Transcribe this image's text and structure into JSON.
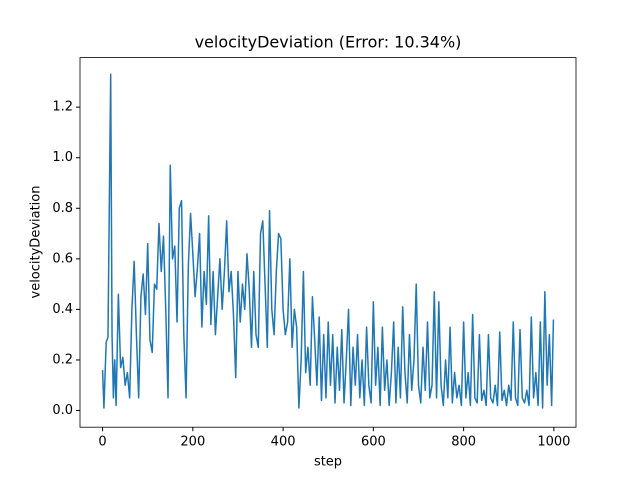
{
  "chart_data": {
    "type": "line",
    "title": "velocityDeviation (Error: 10.34%)",
    "x_label": "step",
    "y_label": "velocityDeviation",
    "color": "#1f77b4",
    "x": [
      0,
      3,
      8,
      12,
      16,
      18,
      21,
      24,
      27,
      30,
      35,
      40,
      45,
      50,
      55,
      60,
      65,
      70,
      75,
      80,
      85,
      90,
      95,
      100,
      105,
      110,
      115,
      120,
      125,
      130,
      135,
      140,
      145,
      150,
      155,
      160,
      165,
      170,
      175,
      180,
      185,
      190,
      195,
      200,
      205,
      210,
      215,
      220,
      225,
      230,
      235,
      240,
      245,
      250,
      255,
      260,
      265,
      270,
      275,
      280,
      285,
      290,
      295,
      300,
      305,
      310,
      315,
      320,
      325,
      330,
      335,
      340,
      345,
      350,
      355,
      360,
      365,
      370,
      375,
      380,
      385,
      390,
      395,
      400,
      405,
      410,
      415,
      420,
      425,
      430,
      435,
      440,
      445,
      450,
      455,
      460,
      465,
      470,
      475,
      480,
      485,
      490,
      495,
      500,
      505,
      510,
      515,
      520,
      525,
      530,
      535,
      540,
      545,
      550,
      555,
      560,
      565,
      570,
      575,
      580,
      585,
      590,
      595,
      600,
      605,
      610,
      615,
      620,
      625,
      630,
      635,
      640,
      645,
      650,
      655,
      660,
      665,
      670,
      675,
      680,
      685,
      690,
      695,
      700,
      705,
      710,
      715,
      720,
      725,
      730,
      735,
      740,
      745,
      750,
      755,
      760,
      765,
      770,
      775,
      780,
      785,
      790,
      795,
      800,
      805,
      810,
      815,
      820,
      825,
      830,
      835,
      840,
      845,
      850,
      855,
      860,
      865,
      870,
      875,
      880,
      885,
      890,
      895,
      900,
      905,
      910,
      915,
      920,
      925,
      930,
      935,
      940,
      945,
      950,
      955,
      960,
      965,
      970,
      975,
      980,
      985,
      990,
      995,
      999
    ],
    "values": [
      0.16,
      0.01,
      0.27,
      0.29,
      1.0,
      1.33,
      0.3,
      0.05,
      0.2,
      0.02,
      0.46,
      0.17,
      0.21,
      0.1,
      0.15,
      0.05,
      0.4,
      0.59,
      0.3,
      0.05,
      0.45,
      0.54,
      0.38,
      0.66,
      0.28,
      0.23,
      0.5,
      0.48,
      0.74,
      0.55,
      0.69,
      0.4,
      0.05,
      0.97,
      0.6,
      0.65,
      0.35,
      0.8,
      0.83,
      0.3,
      0.05,
      0.57,
      0.78,
      0.62,
      0.45,
      0.56,
      0.7,
      0.33,
      0.55,
      0.42,
      0.77,
      0.34,
      0.55,
      0.3,
      0.45,
      0.6,
      0.4,
      0.55,
      0.75,
      0.47,
      0.55,
      0.38,
      0.13,
      0.55,
      0.35,
      0.5,
      0.4,
      0.62,
      0.48,
      0.25,
      0.55,
      0.3,
      0.25,
      0.7,
      0.75,
      0.5,
      0.25,
      0.79,
      0.4,
      0.3,
      0.55,
      0.7,
      0.68,
      0.4,
      0.3,
      0.35,
      0.6,
      0.25,
      0.4,
      0.33,
      0.01,
      0.2,
      0.55,
      0.15,
      0.25,
      0.1,
      0.45,
      0.28,
      0.1,
      0.37,
      0.04,
      0.3,
      0.05,
      0.35,
      0.1,
      0.3,
      0.03,
      0.25,
      0.08,
      0.32,
      0.03,
      0.2,
      0.4,
      0.02,
      0.25,
      0.1,
      0.3,
      0.05,
      0.2,
      0.02,
      0.33,
      0.1,
      0.03,
      0.43,
      0.1,
      0.25,
      0.02,
      0.33,
      0.08,
      0.2,
      0.02,
      0.15,
      0.35,
      0.03,
      0.25,
      0.05,
      0.41,
      0.15,
      0.03,
      0.3,
      0.08,
      0.2,
      0.5,
      0.1,
      0.03,
      0.25,
      0.08,
      0.35,
      0.05,
      0.1,
      0.47,
      0.05,
      0.43,
      0.1,
      0.02,
      0.2,
      0.05,
      0.33,
      0.03,
      0.15,
      0.05,
      0.1,
      0.02,
      0.35,
      0.05,
      0.15,
      0.02,
      0.38,
      0.05,
      0.03,
      0.3,
      0.04,
      0.08,
      0.02,
      0.3,
      0.05,
      0.03,
      0.1,
      0.02,
      0.31,
      0.04,
      0.08,
      0.02,
      0.1,
      0.04,
      0.35,
      0.05,
      0.02,
      0.32,
      0.05,
      0.03,
      0.08,
      0.02,
      0.37,
      0.05,
      0.15,
      0.02,
      0.35,
      0.01,
      0.47,
      0.1,
      0.3,
      0.02,
      0.36
    ],
    "xlim": [
      -50,
      1049
    ],
    "ylim": [
      -0.066,
      1.396
    ],
    "xticks": [
      0,
      200,
      400,
      600,
      800,
      1000
    ],
    "yticks": [
      {
        "value": 0,
        "label": "0.0"
      },
      0.2,
      0.4,
      0.6,
      0.8,
      {
        "value": 1,
        "label": "1.0"
      },
      1.2
    ]
  }
}
